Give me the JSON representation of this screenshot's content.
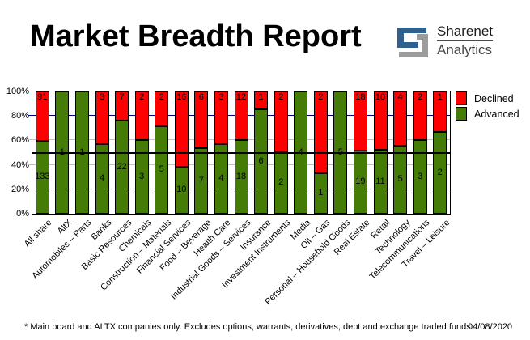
{
  "header": {
    "title": "Market Breadth Report"
  },
  "logo": {
    "line1": "Sharenet",
    "line2": "Analytics",
    "blue": "#2f618e",
    "gray": "#9c9c9c"
  },
  "chart_data": {
    "type": "bar",
    "stacked": true,
    "subtype": "100%-stacked-counts",
    "title": "Market Breadth Report",
    "categories": [
      "All share",
      "AltX",
      "Automobiles – Parts",
      "Banks",
      "Basic Resources",
      "Chemicals",
      "Construction – Materials",
      "Financial Services",
      "Food – Beverage",
      "Health Care",
      "Industrial Goods – Services",
      "Insurance",
      "Investment Instruments",
      "Media",
      "Oil – Gas",
      "Personal – Household Goods",
      "Real Estate",
      "Retail",
      "Technology",
      "Telecommunications",
      "Travel – Leisure"
    ],
    "series": [
      {
        "name": "Declined",
        "color": "#ff0000",
        "values": [
          91,
          0,
          0,
          3,
          7,
          2,
          2,
          16,
          6,
          3,
          12,
          1,
          2,
          0,
          2,
          0,
          18,
          10,
          4,
          2,
          1
        ]
      },
      {
        "name": "Advanced",
        "color": "#447c06",
        "values": [
          133,
          1,
          1,
          4,
          22,
          3,
          5,
          10,
          7,
          4,
          18,
          6,
          2,
          4,
          1,
          5,
          19,
          11,
          5,
          3,
          2
        ]
      }
    ],
    "y_ticks": [
      "100%",
      "80%",
      "60%",
      "40%",
      "20%",
      "0%"
    ],
    "ylim": [
      0,
      100
    ],
    "ylabel": "",
    "xlabel": "",
    "legend_position": "right-top",
    "gridlines": {
      "navy_at": [
        80,
        20
      ],
      "gray_at": [
        60,
        40
      ],
      "black_at": [
        50
      ]
    },
    "colors": {
      "navy_grid": "#000080",
      "gray_grid": "#c0c0c0",
      "mid_line": "#000000",
      "frame": "#000000"
    }
  },
  "footer": {
    "note": "* Main board and ALTX companies only. Excludes options, warrants, derivatives, debt and exchange traded funds",
    "date": "04/08/2020"
  }
}
